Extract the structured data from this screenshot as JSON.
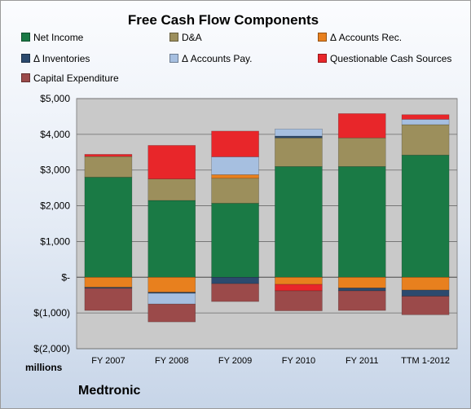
{
  "chart_data": {
    "type": "bar",
    "stacked": true,
    "title": "Free Cash Flow Components",
    "categories": [
      "FY 2007",
      "FY 2008",
      "FY 2009",
      "FY 2010",
      "FY 2011",
      "TTM 1-2012"
    ],
    "y_tick_labels": [
      "$5,000",
      "$4,000",
      "$3,000",
      "$2,000",
      "$1,000",
      "$-",
      "$(1,000)",
      "$(2,000)"
    ],
    "ylim": [
      -2000,
      5000
    ],
    "units_label": "millions",
    "grid": true,
    "legend_position": "top",
    "series": [
      {
        "name": "Net Income",
        "color": "#1a7a45",
        "values": [
          2800,
          2150,
          2070,
          3100,
          3100,
          3420
        ]
      },
      {
        "name": "D&A",
        "color": "#9c8f5c",
        "values": [
          580,
          600,
          700,
          800,
          800,
          850
        ]
      },
      {
        "name": "Δ Accounts Rec.",
        "color": "#e8801e",
        "values": [
          -280,
          -420,
          100,
          -200,
          -300,
          -360
        ]
      },
      {
        "name": "Δ Inventories",
        "color": "#2c4a6e",
        "values": [
          -30,
          -30,
          -180,
          50,
          -80,
          -170
        ]
      },
      {
        "name": "Δ Accounts Pay.",
        "color": "#a6bfe0",
        "values": [
          0,
          -300,
          500,
          200,
          0,
          150
        ]
      },
      {
        "name": "Questionable Cash Sources",
        "color": "#e8262a",
        "values": [
          60,
          940,
          720,
          -180,
          680,
          130
        ]
      },
      {
        "name": "Capital Expenditure",
        "color": "#9b4a4a",
        "values": [
          -620,
          -500,
          -500,
          -560,
          -550,
          -520
        ]
      }
    ]
  },
  "footer": {
    "company": "Medtronic"
  }
}
